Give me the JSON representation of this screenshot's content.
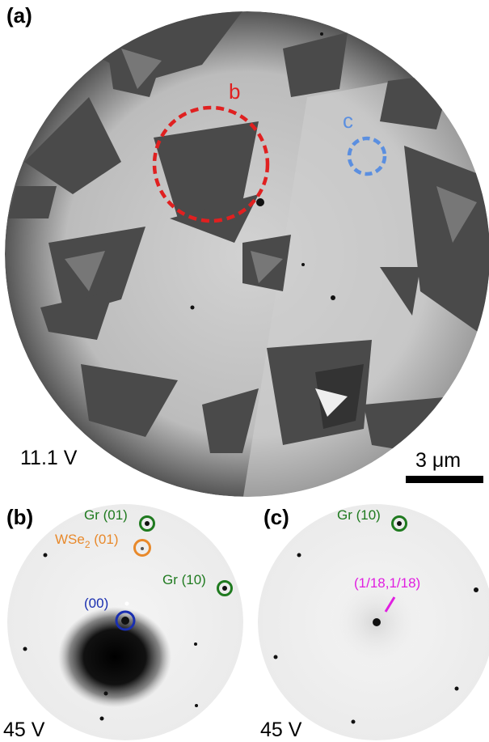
{
  "panel_a": {
    "label": "(a)",
    "voltage": "11.1 V",
    "scale_bar": "3 μm",
    "roi_b_label": "b",
    "roi_c_label": "c",
    "colors": {
      "roi_b": "#e02020",
      "roi_c": "#5b8fe0"
    }
  },
  "panel_b": {
    "label": "(b)",
    "voltage": "45 V",
    "annotations": {
      "gr01": "Gr (01)",
      "wse2_main": "WSe",
      "wse2_sub": "2",
      "wse2_index": " (01)",
      "gr10": "Gr (10)",
      "spot00": "(00)"
    }
  },
  "panel_c": {
    "label": "(c)",
    "voltage": "45 V",
    "annotations": {
      "gr10": "Gr (10)",
      "superlattice": "(1/18,1/18)"
    }
  }
}
